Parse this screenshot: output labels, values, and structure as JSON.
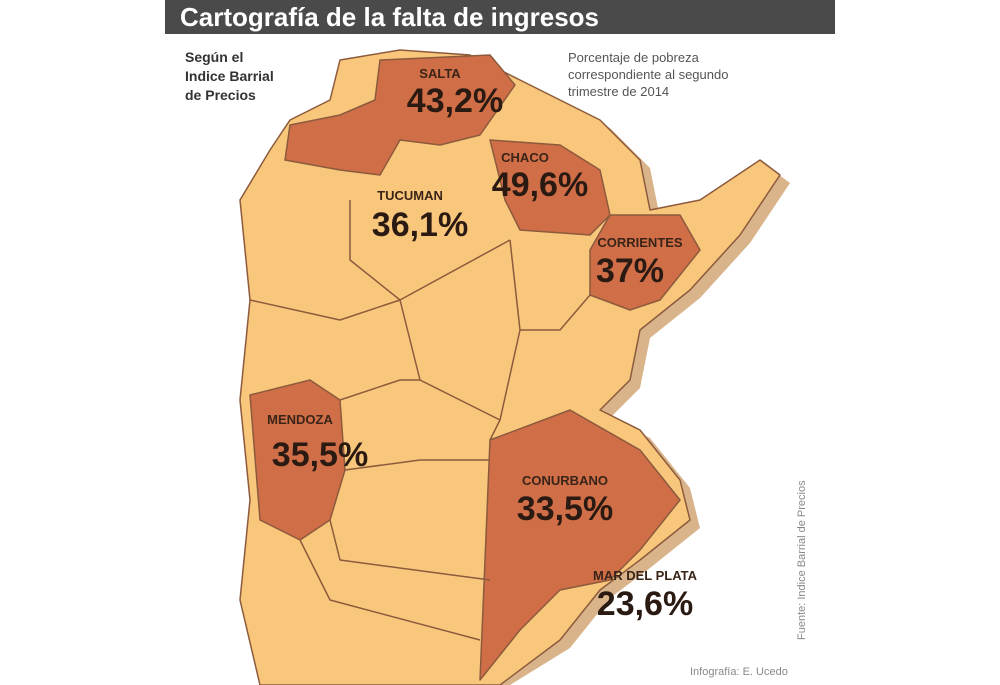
{
  "header": {
    "title": "Cartografía de la falta de ingresos"
  },
  "subtitle": "Según el Indice Barrial de Precios",
  "note": "Porcentaje de pobreza correspondiente al segundo trimestre de 2014",
  "regions": [
    {
      "name": "SALTA",
      "value": "43,2%"
    },
    {
      "name": "CHACO",
      "value": "49,6%"
    },
    {
      "name": "TUCUMAN",
      "value": "36,1%"
    },
    {
      "name": "CORRIENTES",
      "value": "37%"
    },
    {
      "name": "MENDOZA",
      "value": "35,5%"
    },
    {
      "name": "CONURBANO",
      "value": "33,5%"
    },
    {
      "name": "MAR DEL PLATA",
      "value": "23,6%"
    }
  ],
  "source": "Fuente: Indice Barrial de Precios",
  "credit": "Infografía: E. Ucedo"
}
